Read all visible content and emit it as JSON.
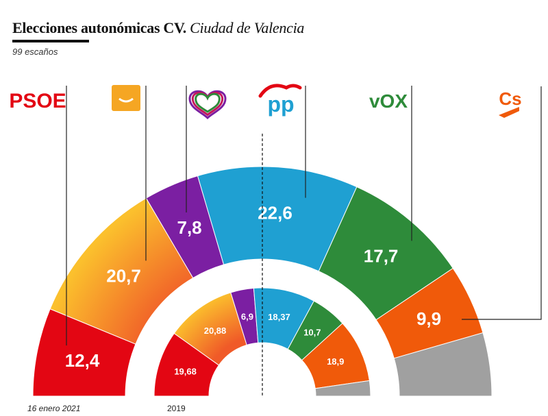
{
  "header": {
    "title_main": "Elecciones autonómicas CV.",
    "title_sub": "Ciudad de Valencia",
    "subtitle": "99 escaños"
  },
  "parties": [
    {
      "id": "psoe",
      "logo_text": "PSOE",
      "color": "#e30613"
    },
    {
      "id": "compromis",
      "logo_text": "",
      "color": "#f5a623"
    },
    {
      "id": "podemos",
      "logo_text": "",
      "color": "#7b1fa2"
    },
    {
      "id": "pp",
      "logo_text": "PP",
      "color": "#1fa0d2"
    },
    {
      "id": "vox",
      "logo_text": "VOX",
      "color": "#2e8b3a"
    },
    {
      "id": "cs",
      "logo_text": "Cs",
      "color": "#f05a0a"
    }
  ],
  "chart_data": {
    "type": "pie",
    "style": "double semicircle (parliament-style)",
    "series": [
      {
        "label": "16 enero 2021",
        "categories": [
          "PSOE",
          "Compromís",
          "Podemos",
          "PP",
          "Vox",
          "Cs",
          "Otros"
        ],
        "values": [
          12.4,
          20.7,
          7.8,
          22.6,
          17.7,
          9.9,
          8.9
        ],
        "labels": [
          "12,4",
          "20,7",
          "7,8",
          "22,6",
          "17,7",
          "9,9",
          ""
        ],
        "colors": [
          "#e30613",
          "#f5a623",
          "#7b1fa2",
          "#1fa0d2",
          "#2e8b3a",
          "#f05a0a",
          "#a0a0a0"
        ]
      },
      {
        "label": "2019",
        "categories": [
          "PSOE",
          "Compromís",
          "Podemos",
          "PP",
          "Vox",
          "Cs",
          "Otros"
        ],
        "values": [
          19.68,
          20.88,
          6.9,
          18.37,
          10.7,
          18.9,
          4.57
        ],
        "labels": [
          "19,68",
          "20,88",
          "6,9",
          "18,37",
          "10,7",
          "18,9",
          ""
        ],
        "colors": [
          "#e30613",
          "#f5a623",
          "#7b1fa2",
          "#1fa0d2",
          "#2e8b3a",
          "#f05a0a",
          "#a0a0a0"
        ]
      }
    ],
    "majority_line": true
  }
}
